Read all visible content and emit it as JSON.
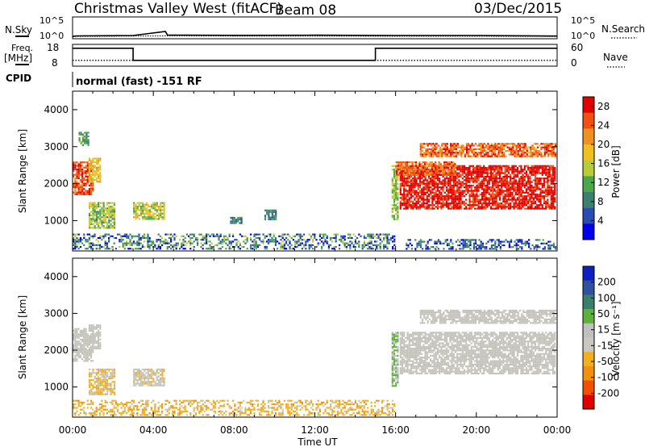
{
  "header": {
    "station": "Christmas Valley West (fitACF)",
    "beam": "Beam 08",
    "date": "03/Dec/2015"
  },
  "noise_panel": {
    "left_label": "N.Sky",
    "right_label": "N.Search",
    "left_ticks": [
      "10^5",
      "10^0"
    ],
    "right_ticks": [
      "10^5",
      "10^0"
    ]
  },
  "freq_panel": {
    "left_label_1": "Freq.",
    "left_label_2": "[MHz]",
    "right_label": "Nave",
    "left_ticks": [
      "18",
      "8"
    ],
    "right_ticks": [
      "60",
      "0"
    ]
  },
  "cpid": {
    "label": "CPID",
    "value": "normal (fast) -151 RF"
  },
  "x_axis": {
    "ticks": [
      "00:00",
      "04:00",
      "08:00",
      "12:00",
      "16:00",
      "20:00",
      "00:00"
    ],
    "label": "Time UT"
  },
  "y_axis": {
    "label": "Slant Range [km]",
    "ticks": [
      "1000",
      "2000",
      "3000",
      "4000"
    ]
  },
  "colors": {
    "power": [
      "#0000ee",
      "#2a4bb0",
      "#3c7f6e",
      "#4ca64c",
      "#b8cc3a",
      "#f0c020",
      "#f09020",
      "#f05010",
      "#e00000"
    ],
    "velocity": [
      "#e00000",
      "#f05000",
      "#f09010",
      "#f0b020",
      "#c8c8c0",
      "#c0c0c0",
      "#60b040",
      "#3a7f6a",
      "#3050a0",
      "#1020c0"
    ]
  },
  "power_bar": {
    "label": "Power [dB]",
    "ticks": [
      "4",
      "8",
      "12",
      "16",
      "20",
      "24",
      "28"
    ]
  },
  "velocity_bar": {
    "label": "Velocity [m s⁻¹]",
    "ticks": [
      "200",
      "100",
      "50",
      "15",
      "-15",
      "-50",
      "-100",
      "-200"
    ]
  },
  "chart_data": [
    {
      "type": "line",
      "name": "noise",
      "x_hours": [
        0,
        0.2,
        3,
        4.6,
        4.7,
        8,
        12,
        16,
        20,
        24
      ],
      "n_sky_log10": [
        0.2,
        0.35,
        0.45,
        1.6,
        0.6,
        0.5,
        0.55,
        0.45,
        0.45,
        0.3
      ],
      "n_search_log10": [
        0.1,
        0.2,
        0.3,
        0.35,
        0.35,
        0.3,
        0.3,
        0.25,
        0.25,
        0.2
      ]
    },
    {
      "type": "line",
      "name": "frequency",
      "x_hours": [
        0,
        3,
        3,
        15,
        15,
        24
      ],
      "freq_mhz": [
        16.5,
        16.5,
        10.5,
        10.5,
        16.5,
        16.5
      ],
      "nave": [
        15,
        15,
        15,
        15,
        15,
        15
      ],
      "ylim_freq": [
        8,
        18
      ],
      "ylim_nave": [
        0,
        60
      ]
    },
    {
      "type": "heatmap",
      "name": "power",
      "xlim_hours": [
        0,
        24
      ],
      "ylim_km": [
        180,
        4500
      ],
      "zlim_db": [
        0,
        30
      ],
      "regions": [
        {
          "t": [
            0,
            1.1
          ],
          "r": [
            1650,
            2600
          ],
          "db": 26,
          "spread": 4
        },
        {
          "t": [
            0.8,
            1.5
          ],
          "r": [
            2000,
            2700
          ],
          "db": 18,
          "spread": 3
        },
        {
          "t": [
            0.3,
            0.9
          ],
          "r": [
            3000,
            3400
          ],
          "db": 10,
          "spread": 4
        },
        {
          "t": [
            0.8,
            2.2
          ],
          "r": [
            750,
            1500
          ],
          "db": 14,
          "spread": 5
        },
        {
          "t": [
            3,
            4.6
          ],
          "r": [
            1000,
            1500
          ],
          "db": 16,
          "spread": 5
        },
        {
          "t": [
            7.8,
            8.5
          ],
          "r": [
            900,
            1100
          ],
          "db": 8,
          "spread": 3
        },
        {
          "t": [
            9.5,
            10.2
          ],
          "r": [
            1000,
            1300
          ],
          "db": 8,
          "spread": 3
        },
        {
          "t": [
            0,
            16
          ],
          "r": [
            200,
            650
          ],
          "db": 8,
          "spread": 8
        },
        {
          "t": [
            15.8,
            16.2
          ],
          "r": [
            1000,
            2500
          ],
          "db": 14,
          "spread": 4
        },
        {
          "t": [
            16.2,
            24
          ],
          "r": [
            1300,
            2500
          ],
          "db": 28,
          "spread": 3
        },
        {
          "t": [
            16,
            19
          ],
          "r": [
            2200,
            2600
          ],
          "db": 24,
          "spread": 4
        },
        {
          "t": [
            17.2,
            24
          ],
          "r": [
            2700,
            3100
          ],
          "db": 24,
          "spread": 5
        },
        {
          "t": [
            16.5,
            24
          ],
          "r": [
            200,
            500
          ],
          "db": 6,
          "spread": 6
        }
      ]
    },
    {
      "type": "heatmap",
      "name": "velocity",
      "xlim_hours": [
        0,
        24
      ],
      "ylim_km": [
        180,
        4500
      ],
      "zlim_ms": [
        -200,
        200
      ],
      "regions": [
        {
          "t": [
            0,
            1.1
          ],
          "r": [
            1650,
            2600
          ],
          "v": 0,
          "spread": 10
        },
        {
          "t": [
            0.8,
            1.5
          ],
          "r": [
            2000,
            2700
          ],
          "v": 0,
          "spread": 10
        },
        {
          "t": [
            0.8,
            2.2
          ],
          "r": [
            750,
            1500
          ],
          "v": -40,
          "spread": 40
        },
        {
          "t": [
            3,
            4.6
          ],
          "r": [
            1000,
            1500
          ],
          "v": -20,
          "spread": 30
        },
        {
          "t": [
            0,
            16
          ],
          "r": [
            200,
            650
          ],
          "v": -60,
          "spread": 30
        },
        {
          "t": [
            15.8,
            16.2
          ],
          "r": [
            1000,
            2500
          ],
          "v": 40,
          "spread": 10
        },
        {
          "t": [
            16.2,
            24
          ],
          "r": [
            1300,
            2500
          ],
          "v": 0,
          "spread": 10
        },
        {
          "t": [
            17.2,
            24
          ],
          "r": [
            2700,
            3100
          ],
          "v": 0,
          "spread": 10
        }
      ]
    }
  ]
}
